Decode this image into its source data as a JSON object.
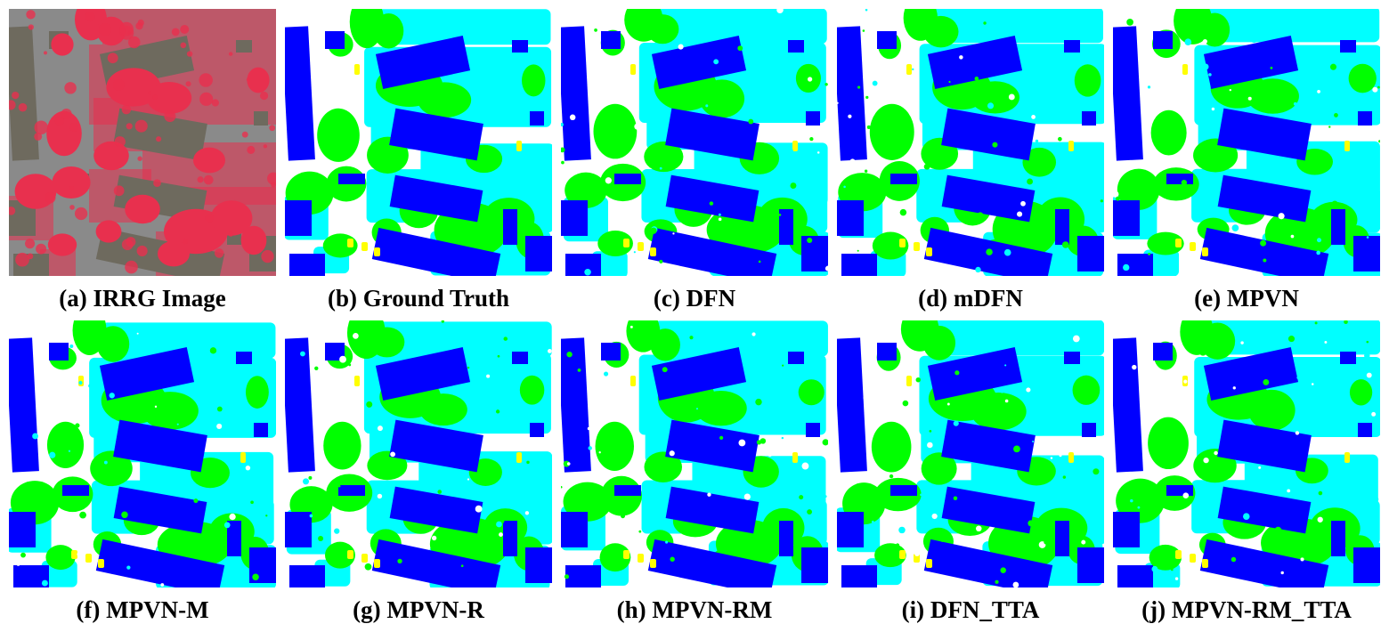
{
  "colors": {
    "building": "#0000ff",
    "low_vegetation": "#00ffff",
    "tree": "#00ff00",
    "impervious_surface": "#ffffff",
    "car": "#ffff00",
    "photo_vegetation": "#e8304e",
    "photo_roof": "#6e6a5e",
    "photo_road": "#8a8a8a"
  },
  "panels": [
    {
      "caption": "(a) IRRG Image",
      "kind": "photo"
    },
    {
      "caption": "(b) Ground Truth",
      "kind": "label"
    },
    {
      "caption": "(c) DFN",
      "kind": "label"
    },
    {
      "caption": "(d) mDFN",
      "kind": "label"
    },
    {
      "caption": "(e) MPVN",
      "kind": "label"
    },
    {
      "caption": "(f) MPVN-M",
      "kind": "label"
    },
    {
      "caption": "(g) MPVN-R",
      "kind": "label"
    },
    {
      "caption": "(h) MPVN-RM",
      "kind": "label"
    },
    {
      "caption": "(i) DFN_TTA",
      "kind": "label"
    },
    {
      "caption": "(j) MPVN-RM_TTA",
      "kind": "label"
    }
  ]
}
